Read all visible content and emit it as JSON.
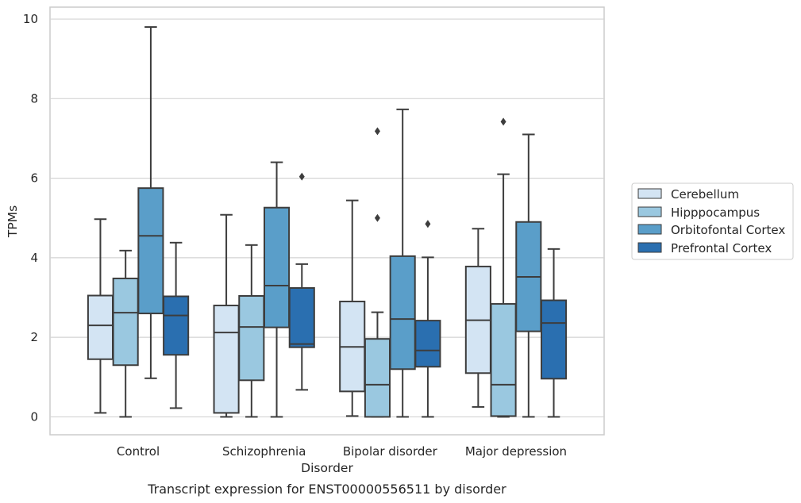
{
  "caption": "Transcript expression for ENST00000556511 by disorder",
  "chart_data": {
    "type": "box",
    "xlabel": "Disorder",
    "ylabel": "TPMs",
    "ylim": [
      -0.45,
      10.3
    ],
    "yticks": [
      0,
      2,
      4,
      6,
      8,
      10
    ],
    "grid": true,
    "legend_position": "right",
    "categories": [
      "Control",
      "Schizophrenia",
      "Bipolar disorder",
      "Major depression"
    ],
    "series": [
      {
        "name": "Cerebellum",
        "color": "#d3e4f3",
        "boxes": [
          {
            "whislo": 0.1,
            "q1": 1.45,
            "med": 2.3,
            "q3": 3.05,
            "whishi": 4.97,
            "fliers": []
          },
          {
            "whislo": 0.0,
            "q1": 0.1,
            "med": 2.12,
            "q3": 2.8,
            "whishi": 5.08,
            "fliers": []
          },
          {
            "whislo": 0.02,
            "q1": 0.64,
            "med": 1.76,
            "q3": 2.9,
            "whishi": 5.44,
            "fliers": []
          },
          {
            "whislo": 0.25,
            "q1": 1.1,
            "med": 2.43,
            "q3": 3.78,
            "whishi": 4.73,
            "fliers": []
          }
        ]
      },
      {
        "name": "Hipppocampus",
        "color": "#9ac8e0",
        "boxes": [
          {
            "whislo": 0.0,
            "q1": 1.3,
            "med": 2.62,
            "q3": 3.48,
            "whishi": 4.18,
            "fliers": []
          },
          {
            "whislo": 0.0,
            "q1": 0.92,
            "med": 2.26,
            "q3": 3.04,
            "whishi": 4.32,
            "fliers": []
          },
          {
            "whislo": 0.0,
            "q1": 0.0,
            "med": 0.81,
            "q3": 1.96,
            "whishi": 2.63,
            "fliers": [
              5.0,
              7.18
            ]
          },
          {
            "whislo": 0.0,
            "q1": 0.02,
            "med": 0.81,
            "q3": 2.84,
            "whishi": 6.1,
            "fliers": [
              7.42
            ]
          }
        ]
      },
      {
        "name": "Orbitofontal Cortex",
        "color": "#5a9ec9",
        "boxes": [
          {
            "whislo": 0.97,
            "q1": 2.6,
            "med": 4.55,
            "q3": 5.75,
            "whishi": 9.8,
            "fliers": []
          },
          {
            "whislo": 0.0,
            "q1": 2.25,
            "med": 3.3,
            "q3": 5.26,
            "whishi": 6.4,
            "fliers": []
          },
          {
            "whislo": 0.0,
            "q1": 1.2,
            "med": 2.46,
            "q3": 4.04,
            "whishi": 7.73,
            "fliers": []
          },
          {
            "whislo": 0.0,
            "q1": 2.15,
            "med": 3.52,
            "q3": 4.9,
            "whishi": 7.1,
            "fliers": []
          }
        ]
      },
      {
        "name": "Prefrontal Cortex",
        "color": "#2a6fb0",
        "boxes": [
          {
            "whislo": 0.22,
            "q1": 1.56,
            "med": 2.55,
            "q3": 3.03,
            "whishi": 4.38,
            "fliers": []
          },
          {
            "whislo": 0.68,
            "q1": 1.75,
            "med": 1.83,
            "q3": 3.24,
            "whishi": 3.84,
            "fliers": [
              6.04
            ]
          },
          {
            "whislo": 0.0,
            "q1": 1.26,
            "med": 1.67,
            "q3": 2.42,
            "whishi": 4.01,
            "fliers": [
              4.85
            ]
          },
          {
            "whislo": 0.0,
            "q1": 0.96,
            "med": 2.36,
            "q3": 2.93,
            "whishi": 4.22,
            "fliers": []
          }
        ]
      }
    ]
  }
}
